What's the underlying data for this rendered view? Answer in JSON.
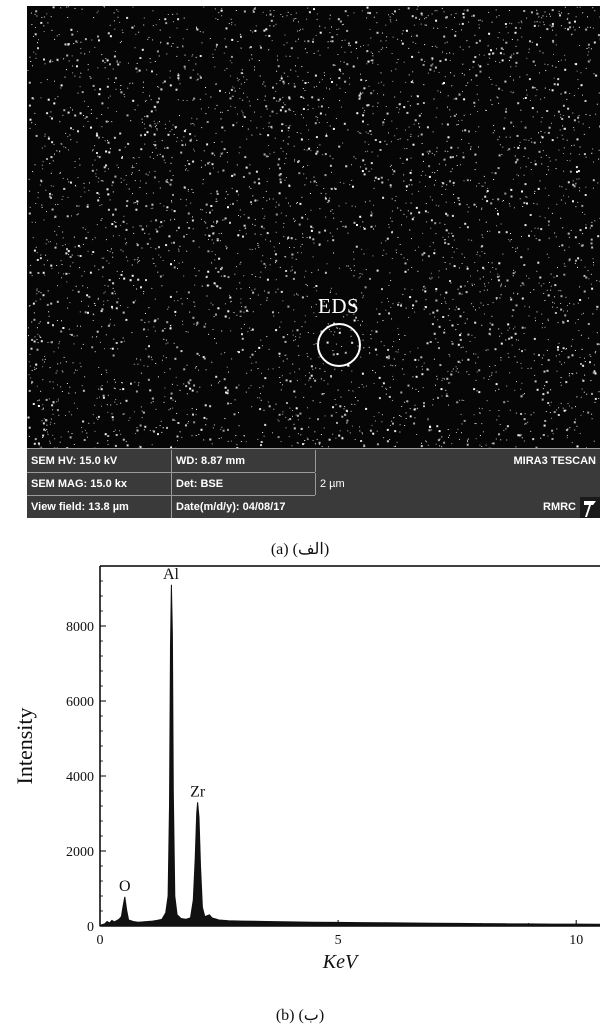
{
  "sem": {
    "eds_label": "EDS",
    "info": {
      "hv": "SEM HV: 15.0 kV",
      "wd": "WD: 8.87 mm",
      "model": "MIRA3 TESCAN",
      "mag": "SEM MAG: 15.0 kx",
      "det": "Det: BSE",
      "scale": "2 µm",
      "view_field": "View field: 13.8 µm",
      "date": "Date(m/d/y): 04/08/17",
      "lab": "RMRC"
    }
  },
  "caption_a": "(a) (الف)",
  "caption_b": "(b) (ب)",
  "chart_data": {
    "type": "line",
    "title": "",
    "xlabel": "KeV",
    "ylabel": "Intensity",
    "xlim": [
      0,
      10.5
    ],
    "ylim": [
      0,
      9600
    ],
    "x_ticks": [
      0,
      5,
      10
    ],
    "y_ticks": [
      0,
      2000,
      4000,
      6000,
      8000
    ],
    "grid": false,
    "series": [
      {
        "points": [
          [
            0.0,
            20
          ],
          [
            0.1,
            60
          ],
          [
            0.15,
            120
          ],
          [
            0.2,
            80
          ],
          [
            0.25,
            150
          ],
          [
            0.3,
            110
          ],
          [
            0.4,
            180
          ],
          [
            0.45,
            250
          ],
          [
            0.48,
            500
          ],
          [
            0.52,
            780
          ],
          [
            0.56,
            420
          ],
          [
            0.6,
            160
          ],
          [
            0.7,
            120
          ],
          [
            0.8,
            100
          ],
          [
            0.9,
            110
          ],
          [
            1.0,
            120
          ],
          [
            1.1,
            130
          ],
          [
            1.2,
            150
          ],
          [
            1.3,
            180
          ],
          [
            1.38,
            350
          ],
          [
            1.43,
            800
          ],
          [
            1.46,
            3200
          ],
          [
            1.48,
            7500
          ],
          [
            1.5,
            9100
          ],
          [
            1.52,
            7800
          ],
          [
            1.54,
            3600
          ],
          [
            1.57,
            800
          ],
          [
            1.62,
            300
          ],
          [
            1.7,
            200
          ],
          [
            1.8,
            180
          ],
          [
            1.9,
            220
          ],
          [
            1.96,
            700
          ],
          [
            2.0,
            1800
          ],
          [
            2.03,
            3000
          ],
          [
            2.05,
            3300
          ],
          [
            2.08,
            2900
          ],
          [
            2.11,
            1600
          ],
          [
            2.15,
            500
          ],
          [
            2.2,
            250
          ],
          [
            2.3,
            300
          ],
          [
            2.35,
            220
          ],
          [
            2.5,
            160
          ],
          [
            2.7,
            140
          ],
          [
            3.0,
            130
          ],
          [
            3.5,
            120
          ],
          [
            4.0,
            110
          ],
          [
            4.5,
            100
          ],
          [
            5.0,
            95
          ],
          [
            5.5,
            90
          ],
          [
            6.0,
            85
          ],
          [
            6.5,
            80
          ],
          [
            7.0,
            75
          ],
          [
            7.5,
            70
          ],
          [
            8.0,
            65
          ],
          [
            8.5,
            60
          ],
          [
            9.0,
            55
          ],
          [
            9.5,
            50
          ],
          [
            10.0,
            50
          ],
          [
            10.5,
            45
          ]
        ]
      }
    ],
    "annotations": [
      {
        "text": "O",
        "x": 0.52,
        "y": 780
      },
      {
        "text": "Al",
        "x": 1.49,
        "y": 9100
      },
      {
        "text": "Zr",
        "x": 2.05,
        "y": 3300
      }
    ]
  }
}
